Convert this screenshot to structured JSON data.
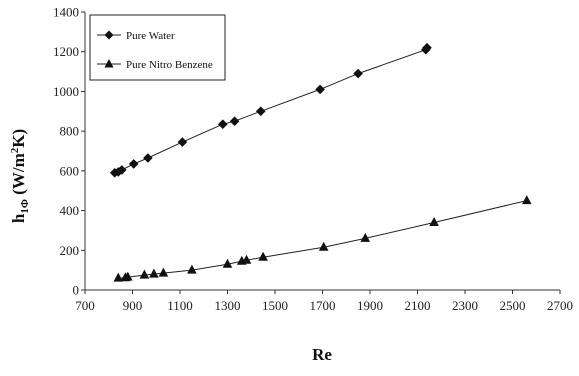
{
  "chart_data": {
    "type": "scatter",
    "title": "",
    "xlabel": "Re",
    "ylabel": "h",
    "ylabel_sub": "1Φ",
    "ylabel_units": " (W/m",
    "ylabel_sup": "2",
    "ylabel_tail": "K)",
    "xlim": [
      700,
      2700
    ],
    "ylim": [
      0,
      1400
    ],
    "xticks": [
      "700",
      "900",
      "1100",
      "1300",
      "1500",
      "1700",
      "1900",
      "2100",
      "2300",
      "2500",
      "2700"
    ],
    "yticks": [
      "0",
      "200",
      "400",
      "600",
      "800",
      "1000",
      "1200",
      "1400"
    ],
    "grid": false,
    "legend_position": "top-left",
    "series": [
      {
        "name": "Pure Water",
        "marker": "diamond",
        "x": [
          825,
          840,
          855,
          905,
          965,
          1110,
          1280,
          1330,
          1440,
          1690,
          1850,
          2135,
          2140
        ],
        "y": [
          590,
          595,
          605,
          635,
          665,
          745,
          835,
          850,
          900,
          1010,
          1090,
          1210,
          1220
        ]
      },
      {
        "name": "Pure Nitro Benzene",
        "marker": "triangle",
        "x": [
          840,
          870,
          880,
          950,
          990,
          1030,
          1150,
          1300,
          1360,
          1380,
          1450,
          1705,
          1880,
          2170,
          2560
        ],
        "y": [
          60,
          62,
          65,
          75,
          80,
          85,
          100,
          130,
          145,
          150,
          165,
          215,
          260,
          340,
          450
        ]
      }
    ]
  }
}
